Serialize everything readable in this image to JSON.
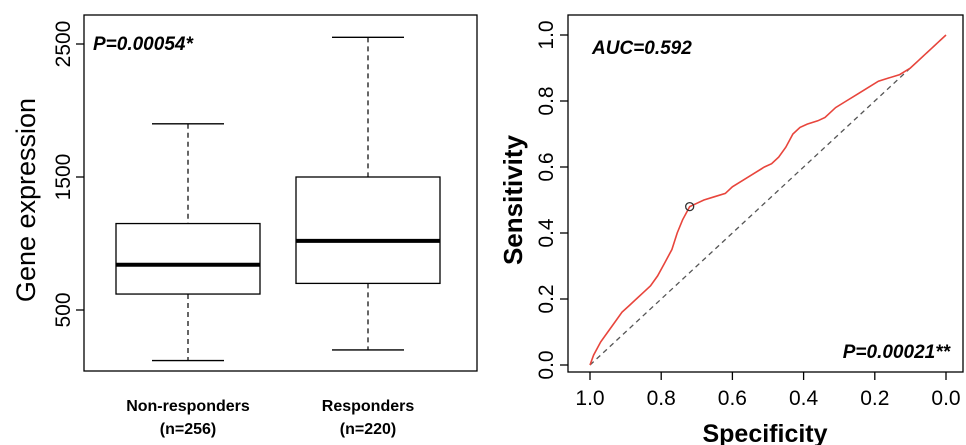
{
  "chart_data": [
    {
      "type": "boxplot",
      "ylabel": "Gene expression",
      "ylim": [
        0,
        2600
      ],
      "y_ticks": [
        500,
        1500,
        2500
      ],
      "annotation": "P=0.00054*",
      "categories": [
        {
          "name": "Non-responders",
          "count_label": "(n=256)",
          "min": 120,
          "q1": 620,
          "median": 840,
          "q3": 1150,
          "max": 1900
        },
        {
          "name": "Responders",
          "count_label": "(n=220)",
          "min": 200,
          "q1": 700,
          "median": 1020,
          "q3": 1500,
          "max": 2550
        }
      ]
    },
    {
      "type": "line",
      "subtype": "roc",
      "xlabel": "Specificity",
      "ylabel": "Sensitivity",
      "xlim": [
        1.0,
        0.0
      ],
      "ylim": [
        0.0,
        1.0
      ],
      "x_ticks": [
        "1.0",
        "0.8",
        "0.6",
        "0.4",
        "0.2",
        "0.0"
      ],
      "y_ticks": [
        "0.0",
        "0.2",
        "0.4",
        "0.6",
        "0.8",
        "1.0"
      ],
      "annotation_auc": "AUC=0.592",
      "annotation_p": "P=0.00021**",
      "line_color": "#e8453c",
      "diagonal_color": "#555555",
      "curve": [
        [
          1.0,
          0.0
        ],
        [
          0.99,
          0.03
        ],
        [
          0.97,
          0.07
        ],
        [
          0.95,
          0.1
        ],
        [
          0.93,
          0.13
        ],
        [
          0.91,
          0.16
        ],
        [
          0.89,
          0.18
        ],
        [
          0.87,
          0.2
        ],
        [
          0.85,
          0.22
        ],
        [
          0.83,
          0.24
        ],
        [
          0.81,
          0.27
        ],
        [
          0.79,
          0.31
        ],
        [
          0.77,
          0.35
        ],
        [
          0.755,
          0.4
        ],
        [
          0.74,
          0.44
        ],
        [
          0.72,
          0.48
        ],
        [
          0.7,
          0.49
        ],
        [
          0.68,
          0.5
        ],
        [
          0.65,
          0.51
        ],
        [
          0.62,
          0.52
        ],
        [
          0.6,
          0.54
        ],
        [
          0.57,
          0.56
        ],
        [
          0.54,
          0.58
        ],
        [
          0.51,
          0.6
        ],
        [
          0.49,
          0.61
        ],
        [
          0.47,
          0.63
        ],
        [
          0.45,
          0.66
        ],
        [
          0.43,
          0.7
        ],
        [
          0.41,
          0.72
        ],
        [
          0.39,
          0.73
        ],
        [
          0.36,
          0.74
        ],
        [
          0.34,
          0.75
        ],
        [
          0.31,
          0.78
        ],
        [
          0.28,
          0.8
        ],
        [
          0.25,
          0.82
        ],
        [
          0.22,
          0.84
        ],
        [
          0.19,
          0.86
        ],
        [
          0.16,
          0.87
        ],
        [
          0.13,
          0.88
        ],
        [
          0.1,
          0.9
        ],
        [
          0.08,
          0.92
        ],
        [
          0.06,
          0.94
        ],
        [
          0.04,
          0.96
        ],
        [
          0.02,
          0.98
        ],
        [
          0.0,
          1.0
        ]
      ],
      "marker": [
        0.72,
        0.48
      ]
    }
  ]
}
